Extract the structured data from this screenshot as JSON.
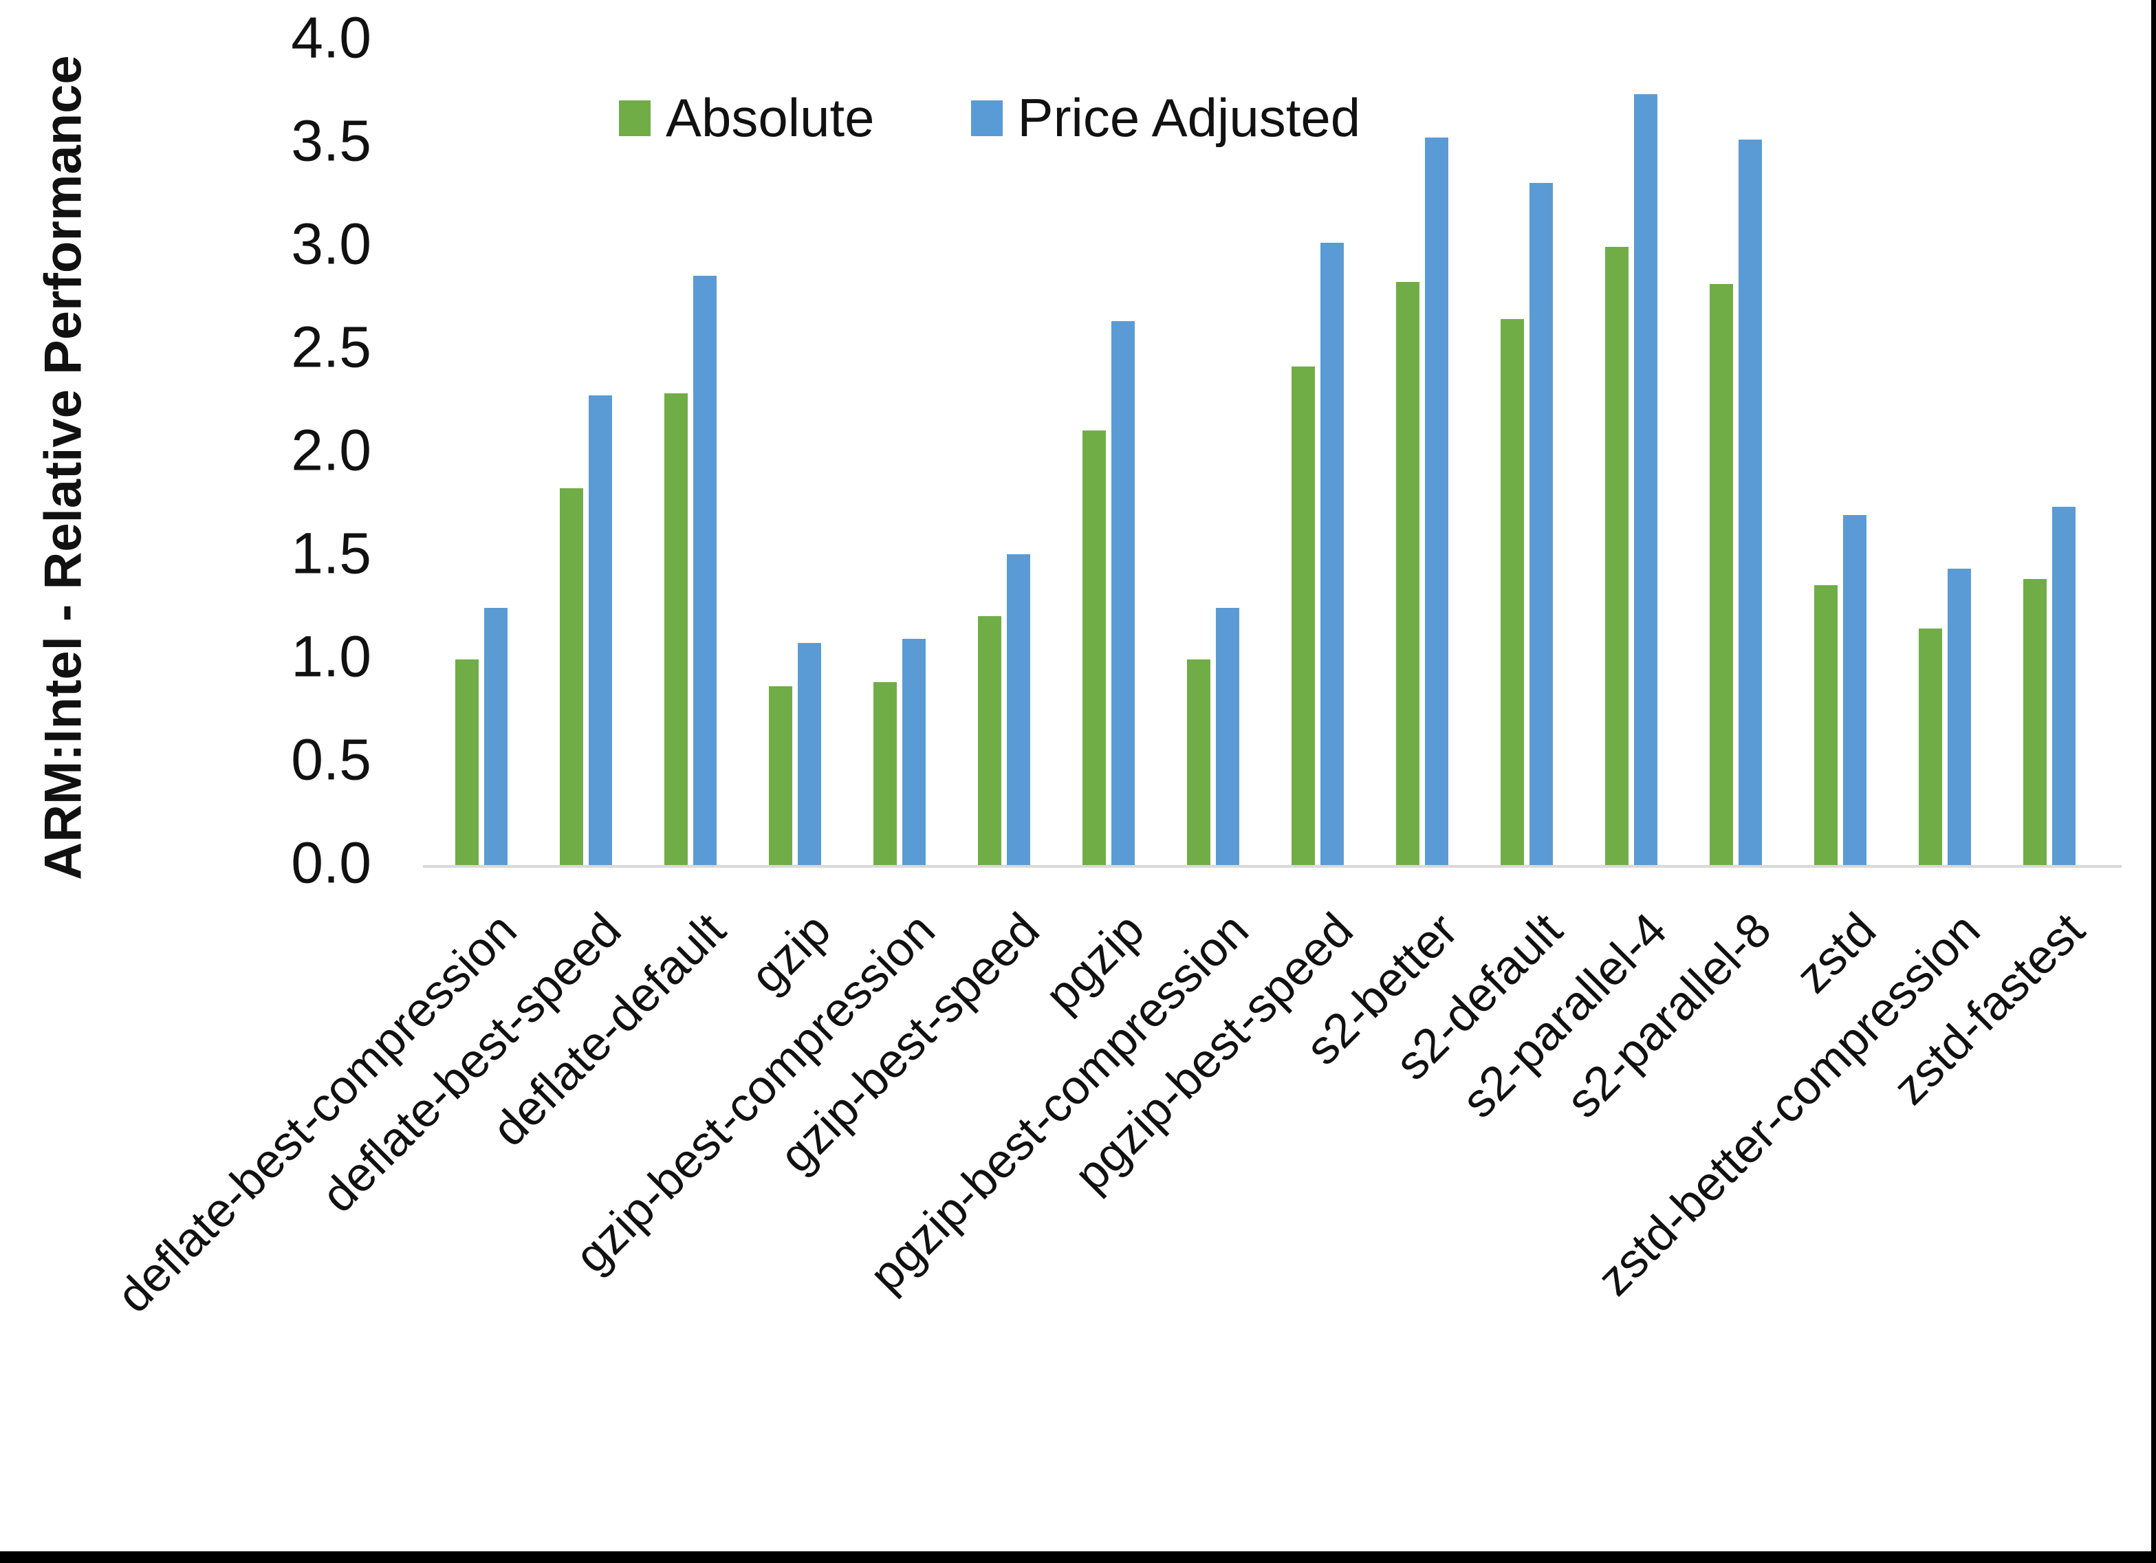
{
  "figure": {
    "y_axis_title": "ARM:Intel - Relative Performance"
  },
  "chart_data": {
    "type": "bar",
    "title": "",
    "xlabel": "",
    "ylabel": "ARM:Intel - Relative Performance",
    "ylim": [
      0.0,
      4.0
    ],
    "ytick_step": 0.5,
    "ytick_labels": [
      "0.0",
      "0.5",
      "1.0",
      "1.5",
      "2.0",
      "2.5",
      "3.0",
      "3.5",
      "4.0"
    ],
    "grid": false,
    "legend_position": "top-center",
    "categories": [
      "deflate-best-compression",
      "deflate-best-speed",
      "deflate-default",
      "gzip",
      "gzip-best-compression",
      "gzip-best-speed",
      "pgzip",
      "pgzip-best-compression",
      "pgzip-best-speed",
      "s2-better",
      "s2-default",
      "s2-parallel-4",
      "s2-parallel-8",
      "zstd",
      "zstd-better-compression",
      "zstd-fastest"
    ],
    "series": [
      {
        "name": "Absolute",
        "color": "#70AD47",
        "values": [
          1.0,
          1.83,
          2.29,
          0.87,
          0.89,
          1.21,
          2.11,
          1.0,
          2.42,
          2.83,
          2.65,
          3.0,
          2.82,
          1.36,
          1.15,
          1.39
        ]
      },
      {
        "name": "Price Adjusted",
        "color": "#5B9BD5",
        "values": [
          1.25,
          2.28,
          2.86,
          1.08,
          1.1,
          1.51,
          2.64,
          1.25,
          3.02,
          3.53,
          3.31,
          3.74,
          3.52,
          1.7,
          1.44,
          1.74
        ]
      }
    ],
    "axis_line_color": "#D9D9D9",
    "frame_border_color": "#000000"
  }
}
